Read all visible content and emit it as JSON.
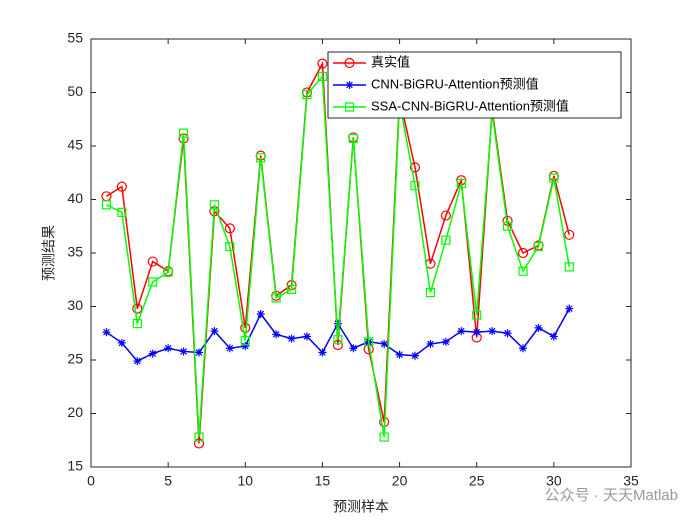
{
  "chart_data": {
    "type": "line",
    "xlabel": "预测样本",
    "ylabel": "预测结果",
    "x": [
      1,
      2,
      3,
      4,
      5,
      6,
      7,
      8,
      9,
      10,
      11,
      12,
      13,
      14,
      15,
      16,
      17,
      18,
      19,
      20,
      21,
      22,
      23,
      24,
      25,
      26,
      27,
      28,
      29,
      30,
      31
    ],
    "series": [
      {
        "name": "真实值",
        "color": "#ff0000",
        "marker": "circle",
        "values": [
          40.3,
          41.2,
          29.8,
          34.2,
          33.3,
          45.7,
          17.2,
          38.9,
          37.3,
          28.0,
          44.1,
          31.0,
          32.0,
          50.0,
          52.7,
          26.4,
          45.8,
          26.0,
          19.2,
          49.5,
          43.0,
          34.0,
          38.5,
          41.8,
          27.1,
          48.4,
          38.0,
          35.0,
          35.7,
          42.2,
          36.7
        ]
      },
      {
        "name": "CNN-BiGRU-Attention预测值",
        "color": "#0000ff",
        "marker": "asterisk",
        "values": [
          27.6,
          26.6,
          24.9,
          25.6,
          26.1,
          25.8,
          25.7,
          27.7,
          26.1,
          26.3,
          29.3,
          27.4,
          27.0,
          27.2,
          25.7,
          28.4,
          26.1,
          26.7,
          26.5,
          25.5,
          25.4,
          26.5,
          26.7,
          27.7,
          27.6,
          27.7,
          27.5,
          26.1,
          28.0,
          27.2,
          29.8
        ]
      },
      {
        "name": "SSA-CNN-BiGRU-Attention预测值",
        "color": "#00ff00",
        "marker": "square",
        "values": [
          39.5,
          38.8,
          28.4,
          32.3,
          33.2,
          46.2,
          17.8,
          39.5,
          35.6,
          26.8,
          43.9,
          30.8,
          31.6,
          49.8,
          51.5,
          26.9,
          45.7,
          26.7,
          17.8,
          49.1,
          41.3,
          31.3,
          36.2,
          41.5,
          29.2,
          48.1,
          37.5,
          33.3,
          35.6,
          42.0,
          33.7
        ]
      }
    ],
    "xlim": [
      0,
      35
    ],
    "xticks": [
      0,
      5,
      10,
      15,
      20,
      25,
      30,
      35
    ],
    "ylim": [
      15,
      55
    ],
    "yticks": [
      15,
      20,
      25,
      30,
      35,
      40,
      45,
      50,
      55
    ],
    "legend": "northeast",
    "grid": false
  },
  "watermark": "公众号 · 天天Matlab"
}
